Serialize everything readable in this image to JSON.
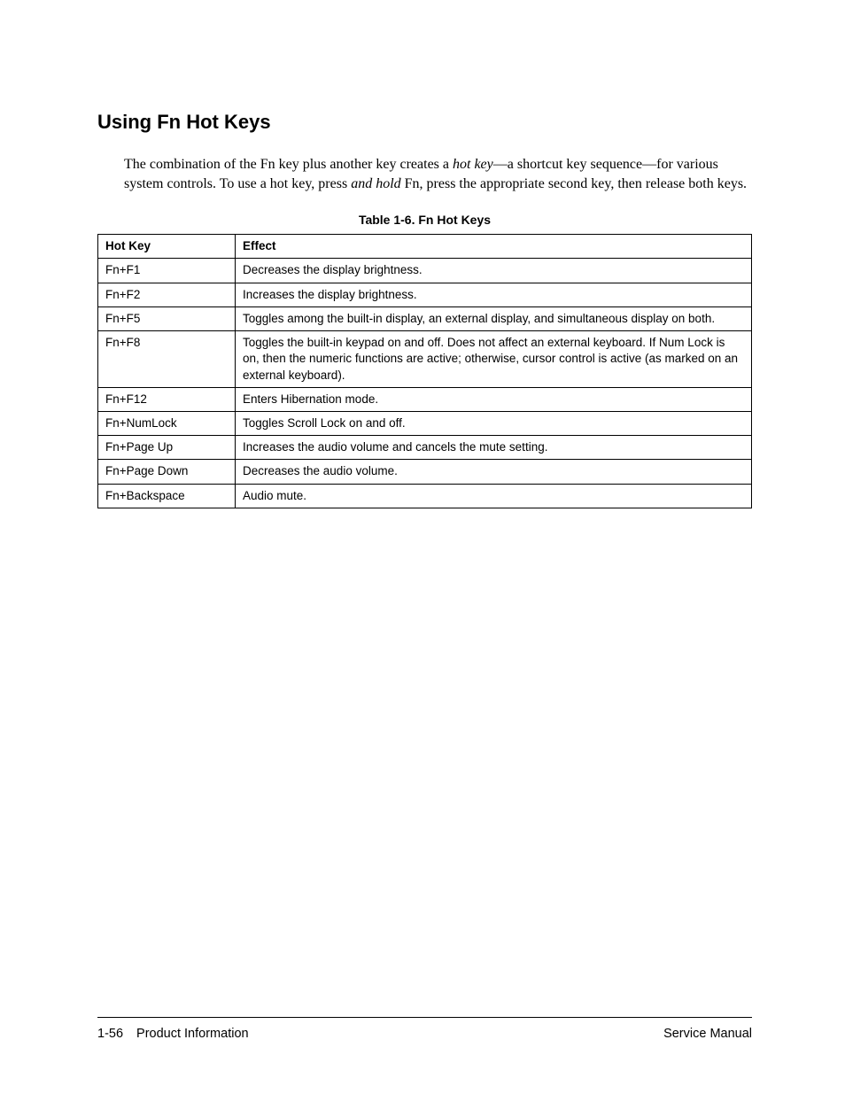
{
  "heading": "Using Fn Hot Keys",
  "intro": {
    "seg1": "The combination of the Fn key plus another key creates a ",
    "hotkey_italic": "hot key",
    "seg2": "—a shortcut key sequence—for various system controls. To use a hot key, press ",
    "andhold_italic": "and hold",
    "seg3": " Fn, press the appropriate second key, then release both keys."
  },
  "table": {
    "caption": "Table 1-6. Fn Hot Keys",
    "headers": {
      "key": "Hot Key",
      "effect": "Effect"
    },
    "rows": [
      {
        "key": "Fn+F1",
        "effect": "Decreases the display brightness."
      },
      {
        "key": "Fn+F2",
        "effect": "Increases the display brightness."
      },
      {
        "key": "Fn+F5",
        "effect": "Toggles among the built-in display, an external display, and simultaneous display on both."
      },
      {
        "key": "Fn+F8",
        "effect": "Toggles the built-in keypad on and off. Does not affect an external keyboard. If Num Lock is on, then the numeric functions are active; otherwise, cursor control is active (as marked on an external keyboard)."
      },
      {
        "key": "Fn+F12",
        "effect": "Enters Hibernation mode."
      },
      {
        "key": "Fn+NumLock",
        "effect": "Toggles Scroll Lock on and off."
      },
      {
        "key": "Fn+Page Up",
        "effect": "Increases the audio volume and cancels the mute setting."
      },
      {
        "key": "Fn+Page Down",
        "effect": "Decreases the audio volume."
      },
      {
        "key": "Fn+Backspace",
        "effect": "Audio mute."
      }
    ]
  },
  "footer": {
    "page_number": "1-56",
    "section": "Product Information",
    "doc": "Service Manual"
  }
}
